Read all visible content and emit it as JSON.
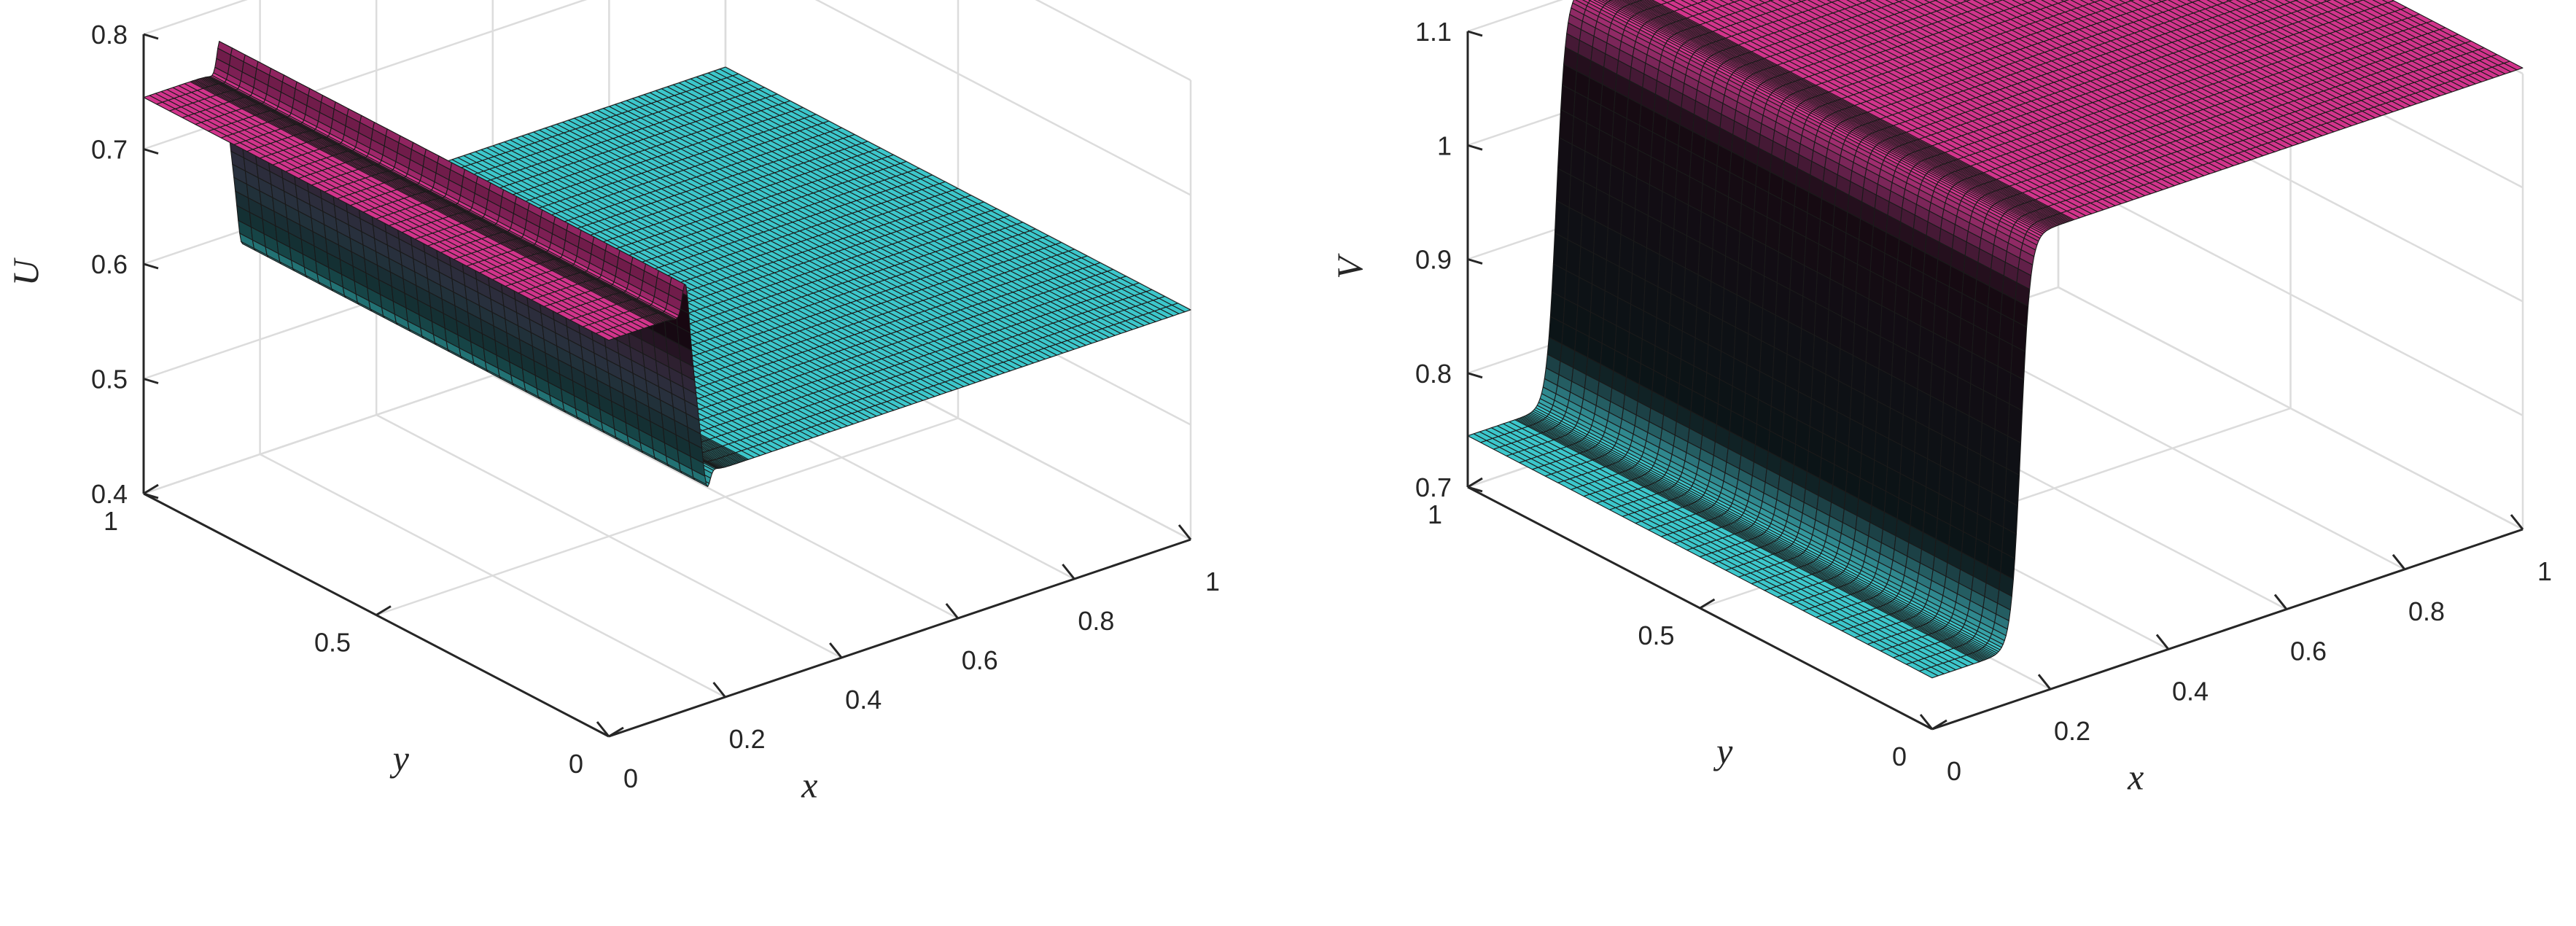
{
  "chart_data": [
    {
      "type": "surface",
      "title": "",
      "xlabel": "x",
      "ylabel": "y",
      "zlabel": "U",
      "xlim": [
        0,
        1
      ],
      "ylim": [
        0,
        1
      ],
      "zlim": [
        0.4,
        0.8
      ],
      "x_ticks": [
        0,
        0.2,
        0.4,
        0.6,
        0.8,
        1
      ],
      "x_tick_labels": [
        "0",
        "0.2",
        "0.4",
        "0.6",
        "0.8",
        "1"
      ],
      "y_ticks": [
        0,
        0.5,
        1
      ],
      "y_tick_labels": [
        "0",
        "0.5",
        "1"
      ],
      "z_ticks": [
        0.4,
        0.5,
        0.6,
        0.7,
        0.8
      ],
      "z_tick_labels": [
        "0.4",
        "0.5",
        "0.6",
        "0.7",
        "0.8"
      ],
      "grid": true,
      "surface": {
        "profile": "step_in_x",
        "left_value": 0.745,
        "right_value": 0.6,
        "step_x": 0.15,
        "overshoot": 0.04,
        "left_color": "#d2348c",
        "right_color": "#3cc7cb",
        "edge_color": "#1a1a1a"
      }
    },
    {
      "type": "surface",
      "title": "",
      "xlabel": "x",
      "ylabel": "y",
      "zlabel": "V",
      "xlim": [
        0,
        1
      ],
      "ylim": [
        0,
        1
      ],
      "zlim": [
        0.7,
        1.1
      ],
      "x_ticks": [
        0,
        0.2,
        0.4,
        0.6,
        0.8,
        1
      ],
      "x_tick_labels": [
        "0",
        "0.2",
        "0.4",
        "0.6",
        "0.8",
        "1"
      ],
      "y_ticks": [
        0,
        0.5,
        1
      ],
      "y_tick_labels": [
        "0",
        "0.5",
        "1"
      ],
      "z_ticks": [
        0.7,
        0.8,
        0.9,
        1.0,
        1.1
      ],
      "z_tick_labels": [
        "0.7",
        "0.8",
        "0.9",
        "1",
        "1.1"
      ],
      "grid": true,
      "surface": {
        "profile": "step_in_x",
        "left_value": 0.745,
        "right_value": 1.105,
        "step_x": 0.15,
        "overshoot": 0.0,
        "left_color": "#3cc7cb",
        "right_color": "#d2348c",
        "edge_color": "#1a1a1a"
      }
    }
  ]
}
